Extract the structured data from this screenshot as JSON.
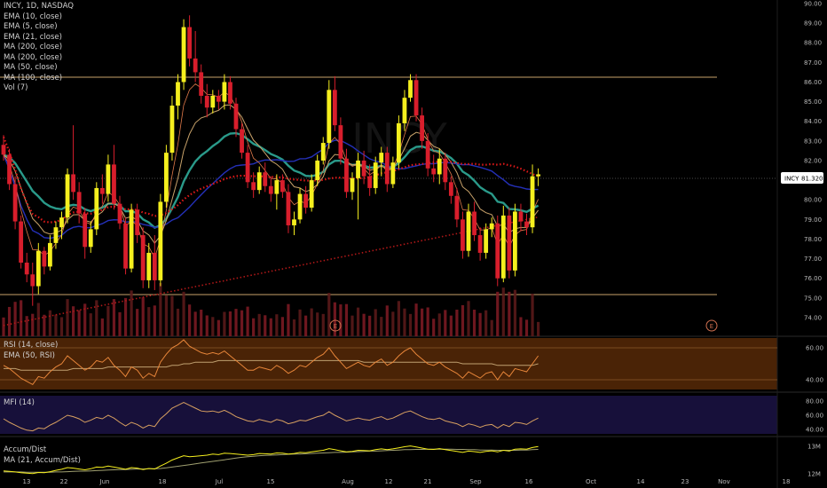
{
  "header": {
    "symbol_line": "INCY, 1D, NASDAQ",
    "main_indicators": [
      "EMA (10, close)",
      "EMA (5, close)",
      "EMA (21, close)",
      "MA (200, close)",
      "MA (200, close)",
      "MA (50, close)",
      "MA (100, close)",
      "Vol (7)"
    ]
  },
  "panes": {
    "rsi": {
      "labels": [
        "RSI (14, close)",
        "EMA (50, RSI)"
      ]
    },
    "mfi": {
      "labels": [
        "MFI (14)"
      ]
    },
    "ad": {
      "labels": [
        "Accum/Dist",
        "MA (21, Accum/Dist)"
      ]
    }
  },
  "price_badge": {
    "symbol": "INCY",
    "value": "81.320"
  },
  "earnings_marker": "E",
  "colors": {
    "up": "#f5ef1e",
    "down": "#d81e2c",
    "ema_teal": "#2a9a8a",
    "ma_red": "#e01818",
    "ma_blue": "#2430b8",
    "ema_tan": "#c8a26a",
    "rsi_bg": "#4a2306",
    "mfi_bg": "#17103a"
  },
  "chart_data": [
    {
      "type": "candlestick",
      "title": "INCY, 1D, NASDAQ",
      "ylim": [
        73.5,
        90.0
      ],
      "y_ticks": [
        "90.00",
        "89.00",
        "88.00",
        "87.00",
        "86.00",
        "85.00",
        "84.00",
        "83.00",
        "82.00",
        "81.00",
        "80.00",
        "79.00",
        "78.00",
        "77.00",
        "76.00",
        "75.00",
        "74.00"
      ],
      "x_ticks": [
        "13",
        "22",
        "Jun",
        "18",
        "Jul",
        "15",
        "Aug",
        "12",
        "21",
        "Sep",
        "16",
        "Oct",
        "14",
        "23",
        "Nov",
        "18"
      ],
      "candles": [
        [
          82.8,
          83.3,
          82.0,
          82.3
        ],
        [
          82.3,
          82.6,
          80.5,
          80.8
        ],
        [
          80.8,
          81.2,
          78.5,
          78.9
        ],
        [
          78.9,
          79.2,
          76.5,
          76.8
        ],
        [
          76.8,
          77.3,
          75.8,
          76.2
        ],
        [
          76.2,
          76.8,
          74.6,
          75.6
        ],
        [
          75.6,
          77.8,
          75.2,
          77.4
        ],
        [
          77.4,
          77.6,
          76.2,
          76.6
        ],
        [
          76.6,
          78.2,
          76.4,
          77.8
        ],
        [
          77.8,
          78.9,
          77.5,
          78.6
        ],
        [
          78.6,
          79.4,
          78.0,
          79.1
        ],
        [
          79.1,
          81.6,
          78.8,
          81.3
        ],
        [
          81.3,
          83.8,
          80.0,
          80.4
        ],
        [
          80.4,
          80.9,
          78.8,
          79.3
        ],
        [
          79.3,
          79.6,
          77.0,
          77.6
        ],
        [
          77.6,
          78.9,
          77.3,
          78.5
        ],
        [
          78.5,
          80.9,
          78.2,
          80.6
        ],
        [
          80.6,
          81.3,
          79.8,
          80.3
        ],
        [
          80.3,
          82.3,
          79.9,
          81.8
        ],
        [
          81.8,
          82.8,
          79.5,
          79.8
        ],
        [
          79.8,
          80.2,
          78.5,
          78.8
        ],
        [
          78.8,
          79.1,
          76.2,
          76.5
        ],
        [
          76.5,
          79.8,
          76.3,
          79.5
        ],
        [
          79.5,
          79.8,
          77.8,
          78.2
        ],
        [
          78.2,
          78.6,
          75.5,
          75.9
        ],
        [
          75.9,
          77.8,
          75.5,
          77.3
        ],
        [
          77.3,
          78.2,
          75.4,
          75.9
        ],
        [
          75.9,
          80.3,
          75.6,
          79.9
        ],
        [
          79.9,
          82.8,
          79.6,
          82.4
        ],
        [
          82.4,
          85.3,
          82.0,
          84.8
        ],
        [
          84.8,
          86.4,
          84.1,
          86.0
        ],
        [
          86.0,
          89.2,
          85.6,
          88.8
        ],
        [
          88.8,
          89.4,
          86.8,
          87.2
        ],
        [
          87.2,
          88.6,
          86.0,
          86.5
        ],
        [
          86.5,
          86.9,
          84.9,
          85.3
        ],
        [
          85.3,
          85.9,
          84.2,
          84.7
        ],
        [
          84.7,
          85.6,
          84.4,
          85.3
        ],
        [
          85.3,
          85.6,
          84.6,
          85.0
        ],
        [
          85.0,
          86.4,
          84.6,
          86.0
        ],
        [
          86.0,
          86.3,
          84.6,
          84.9
        ],
        [
          84.9,
          85.2,
          83.2,
          83.6
        ],
        [
          83.6,
          83.9,
          82.1,
          82.4
        ],
        [
          82.4,
          82.8,
          80.6,
          80.9
        ],
        [
          80.9,
          81.4,
          80.1,
          80.5
        ],
        [
          80.5,
          81.7,
          80.3,
          81.4
        ],
        [
          81.4,
          81.9,
          80.4,
          80.7
        ],
        [
          80.7,
          81.2,
          79.9,
          80.3
        ],
        [
          80.3,
          81.3,
          79.5,
          81.0
        ],
        [
          81.0,
          81.3,
          80.1,
          80.4
        ],
        [
          80.4,
          80.8,
          78.3,
          78.7
        ],
        [
          78.7,
          79.4,
          78.2,
          79.0
        ],
        [
          79.0,
          80.6,
          78.8,
          80.3
        ],
        [
          80.3,
          80.7,
          79.3,
          79.6
        ],
        [
          79.6,
          81.3,
          79.4,
          81.0
        ],
        [
          81.0,
          82.3,
          80.7,
          82.0
        ],
        [
          82.0,
          83.2,
          81.8,
          82.9
        ],
        [
          82.9,
          86.1,
          82.6,
          85.6
        ],
        [
          85.6,
          86.3,
          83.5,
          83.8
        ],
        [
          83.8,
          84.2,
          81.8,
          82.1
        ],
        [
          82.1,
          82.6,
          80.1,
          80.4
        ],
        [
          80.4,
          81.4,
          80.0,
          81.1
        ],
        [
          81.1,
          82.4,
          79.0,
          82.0
        ],
        [
          82.0,
          82.5,
          80.8,
          81.2
        ],
        [
          81.2,
          81.8,
          80.2,
          80.6
        ],
        [
          80.6,
          82.2,
          80.3,
          81.9
        ],
        [
          81.9,
          82.7,
          81.2,
          82.4
        ],
        [
          82.4,
          82.7,
          80.4,
          80.8
        ],
        [
          80.8,
          82.2,
          80.6,
          81.9
        ],
        [
          81.9,
          84.3,
          81.6,
          83.9
        ],
        [
          83.9,
          85.6,
          83.5,
          85.2
        ],
        [
          85.2,
          86.4,
          85.0,
          86.1
        ],
        [
          86.1,
          86.4,
          84.0,
          84.3
        ],
        [
          84.3,
          84.7,
          82.6,
          83.0
        ],
        [
          83.0,
          83.4,
          81.2,
          81.6
        ],
        [
          81.6,
          82.3,
          80.9,
          81.3
        ],
        [
          81.3,
          82.6,
          80.8,
          82.1
        ],
        [
          82.1,
          82.4,
          80.5,
          80.9
        ],
        [
          80.9,
          81.2,
          79.8,
          80.2
        ],
        [
          80.2,
          80.6,
          78.6,
          79.0
        ],
        [
          79.0,
          79.4,
          77.0,
          77.4
        ],
        [
          77.4,
          79.8,
          77.1,
          79.4
        ],
        [
          79.4,
          79.9,
          77.9,
          78.2
        ],
        [
          78.2,
          78.6,
          76.9,
          77.3
        ],
        [
          77.3,
          78.8,
          77.0,
          78.5
        ],
        [
          78.5,
          79.1,
          78.1,
          78.8
        ],
        [
          78.8,
          79.2,
          75.6,
          76.0
        ],
        [
          76.0,
          79.7,
          75.8,
          79.2
        ],
        [
          79.2,
          79.6,
          76.0,
          76.4
        ],
        [
          76.4,
          79.8,
          76.1,
          79.4
        ],
        [
          79.4,
          79.8,
          78.4,
          78.9
        ],
        [
          78.9,
          79.3,
          78.2,
          78.6
        ],
        [
          78.6,
          81.8,
          78.3,
          81.2
        ],
        [
          81.2,
          81.6,
          80.7,
          81.3
        ]
      ]
    },
    {
      "type": "line",
      "title": "RSI (14, close)",
      "ylim": [
        35,
        65
      ],
      "y_ticks": [
        "60.00",
        "40.00"
      ],
      "series": [
        {
          "name": "RSI (14, close)",
          "values": [
            49,
            47,
            44,
            41,
            39,
            37,
            42,
            41,
            45,
            48,
            50,
            55,
            52,
            49,
            46,
            48,
            52,
            51,
            54,
            49,
            46,
            42,
            48,
            46,
            41,
            44,
            42,
            51,
            56,
            60,
            62,
            65,
            61,
            59,
            57,
            56,
            57,
            56,
            58,
            55,
            52,
            49,
            46,
            46,
            48,
            47,
            46,
            49,
            47,
            44,
            46,
            49,
            48,
            51,
            54,
            56,
            60,
            55,
            51,
            47,
            49,
            51,
            49,
            48,
            51,
            53,
            49,
            51,
            55,
            58,
            60,
            56,
            53,
            50,
            49,
            51,
            48,
            46,
            44,
            41,
            45,
            43,
            41,
            44,
            45,
            40,
            45,
            42,
            47,
            46,
            45,
            50,
            55
          ]
        },
        {
          "name": "EMA (50, RSI)",
          "values": [
            47,
            47,
            47,
            46,
            46,
            46,
            46,
            46,
            46,
            46,
            46,
            46,
            47,
            47,
            47,
            47,
            47,
            47,
            48,
            48,
            48,
            48,
            48,
            48,
            48,
            48,
            48,
            48,
            48,
            49,
            49,
            50,
            50,
            51,
            51,
            51,
            51,
            52,
            52,
            52,
            52,
            52,
            52,
            52,
            52,
            52,
            52,
            52,
            52,
            52,
            52,
            52,
            52,
            52,
            52,
            52,
            52,
            52,
            52,
            52,
            52,
            52,
            51,
            51,
            51,
            51,
            51,
            51,
            51,
            51,
            51,
            51,
            51,
            51,
            51,
            51,
            51,
            51,
            51,
            50,
            50,
            50,
            50,
            50,
            50,
            49,
            49,
            49,
            49,
            49,
            49,
            49,
            50
          ]
        }
      ]
    },
    {
      "type": "line",
      "title": "MFI (14)",
      "ylim": [
        35,
        85
      ],
      "y_ticks": [
        "80.00",
        "60.00",
        "40.00"
      ],
      "series": [
        {
          "name": "MFI (14)",
          "values": [
            55,
            50,
            46,
            42,
            39,
            38,
            42,
            41,
            46,
            50,
            55,
            60,
            58,
            55,
            50,
            53,
            57,
            55,
            60,
            56,
            50,
            45,
            50,
            47,
            42,
            46,
            44,
            55,
            62,
            70,
            74,
            78,
            74,
            70,
            66,
            65,
            66,
            64,
            67,
            63,
            58,
            55,
            52,
            51,
            54,
            52,
            50,
            54,
            52,
            48,
            50,
            53,
            52,
            55,
            58,
            60,
            65,
            60,
            56,
            52,
            54,
            56,
            54,
            53,
            56,
            58,
            54,
            56,
            60,
            64,
            66,
            62,
            58,
            55,
            54,
            56,
            52,
            50,
            48,
            44,
            48,
            46,
            43,
            46,
            47,
            42,
            47,
            44,
            50,
            49,
            47,
            52,
            56
          ]
        }
      ]
    },
    {
      "type": "line",
      "title": "Accum/Dist",
      "y_ticks": [
        "13M",
        "12M"
      ],
      "series": [
        {
          "name": "Accum/Dist",
          "values": [
            12.1,
            12.08,
            12.06,
            12.03,
            12.02,
            12.0,
            12.04,
            12.03,
            12.07,
            12.12,
            12.16,
            12.22,
            12.2,
            12.17,
            12.14,
            12.18,
            12.24,
            12.23,
            12.28,
            12.24,
            12.2,
            12.16,
            12.22,
            12.2,
            12.15,
            12.19,
            12.17,
            12.28,
            12.38,
            12.5,
            12.58,
            12.66,
            12.62,
            12.64,
            12.66,
            12.68,
            12.72,
            12.7,
            12.75,
            12.74,
            12.72,
            12.7,
            12.68,
            12.7,
            12.74,
            12.73,
            12.72,
            12.76,
            12.75,
            12.72,
            12.74,
            12.78,
            12.77,
            12.8,
            12.83,
            12.86,
            12.92,
            12.88,
            12.84,
            12.8,
            12.82,
            12.86,
            12.85,
            12.84,
            12.88,
            12.91,
            12.88,
            12.91,
            12.95,
            12.99,
            13.02,
            12.98,
            12.94,
            12.9,
            12.89,
            12.92,
            12.88,
            12.85,
            12.82,
            12.78,
            12.83,
            12.81,
            12.78,
            12.82,
            12.84,
            12.8,
            12.86,
            12.83,
            12.9,
            12.91,
            12.9,
            12.96,
            13.0
          ]
        },
        {
          "name": "MA (21, Accum/Dist)",
          "values": [
            12.06,
            12.06,
            12.06,
            12.06,
            12.05,
            12.05,
            12.05,
            12.05,
            12.05,
            12.06,
            12.06,
            12.07,
            12.08,
            12.09,
            12.09,
            12.1,
            12.11,
            12.12,
            12.13,
            12.14,
            12.15,
            12.15,
            12.16,
            12.17,
            12.17,
            12.18,
            12.18,
            12.19,
            12.21,
            12.24,
            12.27,
            12.3,
            12.33,
            12.36,
            12.39,
            12.42,
            12.45,
            12.48,
            12.51,
            12.54,
            12.57,
            12.6,
            12.62,
            12.64,
            12.66,
            12.67,
            12.68,
            12.69,
            12.7,
            12.71,
            12.72,
            12.72,
            12.73,
            12.74,
            12.75,
            12.76,
            12.77,
            12.78,
            12.78,
            12.79,
            12.8,
            12.81,
            12.82,
            12.83,
            12.83,
            12.84,
            12.85,
            12.86,
            12.87,
            12.88,
            12.88,
            12.89,
            12.89,
            12.9,
            12.9,
            12.9,
            12.9,
            12.9,
            12.89,
            12.89,
            12.88,
            12.88,
            12.87,
            12.87,
            12.87,
            12.86,
            12.86,
            12.86,
            12.86,
            12.87,
            12.87,
            12.88,
            12.89
          ]
        }
      ]
    }
  ]
}
